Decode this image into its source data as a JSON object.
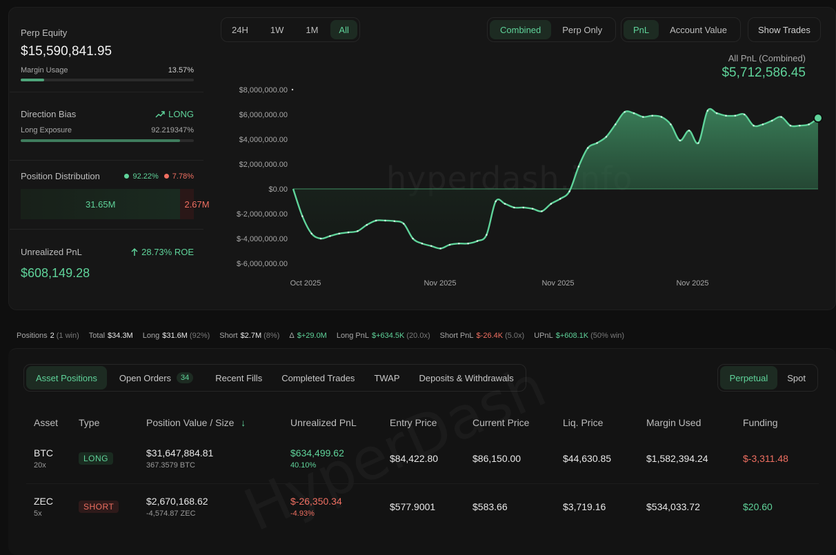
{
  "stats": {
    "perp_equity_label": "Perp Equity",
    "perp_equity_value": "$15,590,841.95",
    "margin_usage_label": "Margin Usage",
    "margin_usage_value": "13.57%",
    "margin_usage_fraction": 0.1357,
    "direction_bias_label": "Direction Bias",
    "direction_bias_value": "LONG",
    "long_exposure_label": "Long Exposure",
    "long_exposure_value": "92.219347%",
    "long_exposure_fraction": 0.9222,
    "position_distribution_label": "Position Distribution",
    "dist_long_pct": "92.22%",
    "dist_short_pct": "7.78%",
    "dist_long_value": "31.65M",
    "dist_short_value": "2.67M",
    "dist_long_fraction": 0.9222,
    "unrealized_pnl_label": "Unrealized PnL",
    "roe": "28.73% ROE",
    "unrealized_pnl_value": "$608,149.28"
  },
  "controls": {
    "timeframes": [
      "24H",
      "1W",
      "1M",
      "All"
    ],
    "timeframe_active": "All",
    "modes": [
      "Combined",
      "Perp Only"
    ],
    "mode_active": "Combined",
    "metrics": [
      "PnL",
      "Account Value"
    ],
    "metric_active": "PnL",
    "show_trades": "Show Trades"
  },
  "pnl_header": {
    "title": "All PnL (Combined)",
    "value": "$5,712,586.45"
  },
  "watermark": "hyperdash.info",
  "chart_data": {
    "type": "area",
    "y_ticks": [
      "$8,000,000.00",
      "$6,000,000.00",
      "$4,000,000.00",
      "$2,000,000.00",
      "$0.00",
      "$-2,000,000.00",
      "$-4,000,000.00",
      "$-6,000,000.00"
    ],
    "x_ticks": [
      "Oct 2025",
      "Nov 2025",
      "Nov 2025",
      "Nov 2025"
    ],
    "ylim": [
      -6000000,
      8000000
    ],
    "grid": false,
    "color": "#5fd39a",
    "values": [
      0,
      -2200000,
      -3600000,
      -4000000,
      -3800000,
      -3600000,
      -3500000,
      -3400000,
      -2900000,
      -2550000,
      -2550000,
      -2600000,
      -2800000,
      -4000000,
      -4400000,
      -4600000,
      -4800000,
      -4500000,
      -4400000,
      -4400000,
      -4200000,
      -3700000,
      -1000000,
      -1200000,
      -1500000,
      -1500000,
      -1600000,
      -1800000,
      -1200000,
      -800000,
      -200000,
      1800000,
      3300000,
      3700000,
      4200000,
      5200000,
      6200000,
      6100000,
      5800000,
      5900000,
      5800000,
      5200000,
      3900000,
      4700000,
      3700000,
      6300000,
      6100000,
      5900000,
      5900000,
      6000000,
      5100000,
      5200000,
      5500000,
      5800000,
      5100000,
      5100000,
      5200000,
      5712586
    ]
  },
  "summary": {
    "positions_label": "Positions",
    "positions_value": "2",
    "positions_note": "(1 win)",
    "total_label": "Total",
    "total_value": "$34.3M",
    "long_label": "Long",
    "long_value": "$31.6M",
    "long_note": "(92%)",
    "short_label": "Short",
    "short_value": "$2.7M",
    "short_note": "(8%)",
    "delta_label": "Δ",
    "delta_value": "$+29.0M",
    "long_pnl_label": "Long PnL",
    "long_pnl_value": "$+634.5K",
    "long_pnl_note": "(20.0x)",
    "short_pnl_label": "Short PnL",
    "short_pnl_value": "$-26.4K",
    "short_pnl_note": "(5.0x)",
    "upnl_label": "UPnL",
    "upnl_value": "$+608.1K",
    "upnl_note": "(50% win)"
  },
  "tabs": {
    "asset_positions": "Asset Positions",
    "open_orders": "Open Orders",
    "open_orders_count": "34",
    "recent_fills": "Recent Fills",
    "completed_trades": "Completed Trades",
    "twap": "TWAP",
    "deposits_withdrawals": "Deposits & Withdrawals",
    "perpetual": "Perpetual",
    "spot": "Spot"
  },
  "table": {
    "headers": {
      "asset": "Asset",
      "type": "Type",
      "position": "Position Value / Size",
      "sort_icon": "↓",
      "upnl": "Unrealized PnL",
      "entry": "Entry Price",
      "current": "Current Price",
      "liq": "Liq. Price",
      "margin": "Margin Used",
      "funding": "Funding"
    },
    "rows": [
      {
        "asset": "BTC",
        "leverage": "20x",
        "type": "LONG",
        "value": "$31,647,884.81",
        "size": "367.3579 BTC",
        "upnl": "$634,499.62",
        "upnl_pct": "40.10%",
        "entry": "$84,422.80",
        "current": "$86,150.00",
        "liq": "$44,630.85",
        "margin": "$1,582,394.24",
        "funding": "$-3,311.48"
      },
      {
        "asset": "ZEC",
        "leverage": "5x",
        "type": "SHORT",
        "value": "$2,670,168.62",
        "size": "-4,574.87 ZEC",
        "upnl": "$-26,350.34",
        "upnl_pct": "-4.93%",
        "entry": "$577.9001",
        "current": "$583.66",
        "liq": "$3,719.16",
        "margin": "$534,033.72",
        "funding": "$20.60"
      }
    ]
  },
  "watermark_bottom": "HyperDash"
}
